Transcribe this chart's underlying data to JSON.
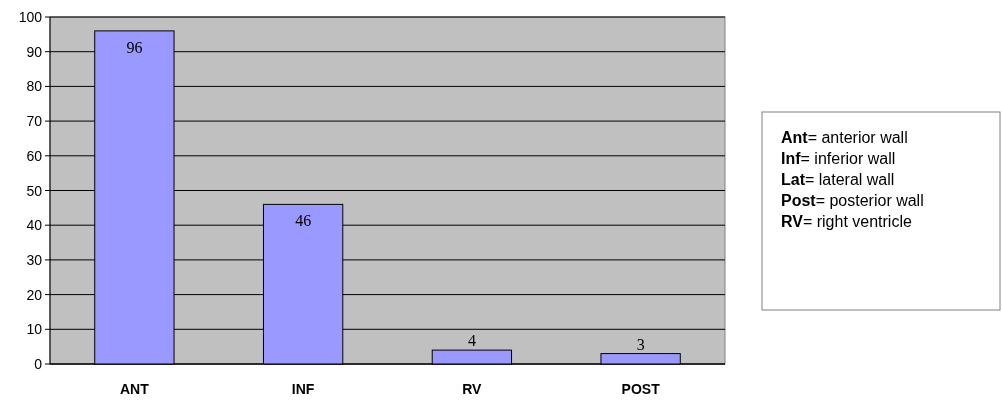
{
  "chart_data": {
    "type": "bar",
    "categories": [
      "ANT",
      "INF",
      "RV",
      "POST"
    ],
    "values": [
      96,
      46,
      4,
      3
    ],
    "color": "#9999ff",
    "ylim": [
      0,
      100
    ],
    "yticks": [
      0,
      10,
      20,
      30,
      40,
      50,
      60,
      70,
      80,
      90,
      100
    ],
    "grid": "y",
    "data_labels": true,
    "annotations": [
      "Ant= anterior wall",
      "Inf= inferior wall",
      "Lat= lateral wall",
      "Post= posterior wall",
      "RV= right ventricle"
    ]
  }
}
